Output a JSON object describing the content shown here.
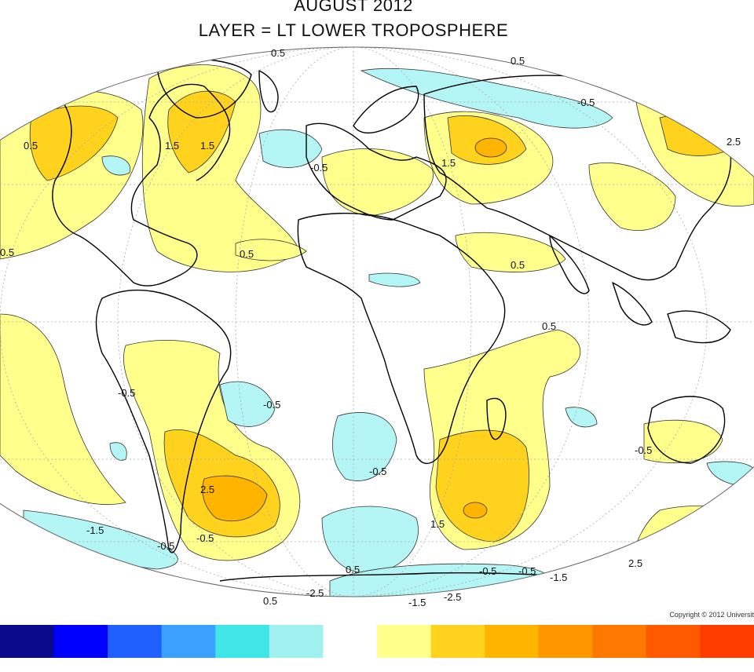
{
  "title": {
    "line1": "AUGUST 2012",
    "line2": "LAYER = LT LOWER TROPOSPHERE"
  },
  "copyright": "Copyright © 2012 Universit",
  "colors": {
    "positive_light": "#ffff8c",
    "positive_mid": "#ffd21e",
    "positive_strong": "#ffb400",
    "negative_light": "#b4f5f5",
    "ocean_bg": "#ffffff",
    "coast": "#000000"
  },
  "contour_labels": [
    "0.5",
    "0.5",
    "-0.5",
    "-0.5",
    "0.5",
    "1.5",
    "2.5",
    "1.5",
    "1.5",
    "0.5",
    "0.5",
    "0.5",
    "0.5",
    "-0.5",
    "-0.5",
    "-0.5",
    "-0.5",
    "2.5",
    "-1.5",
    "-0.5",
    "-0.5",
    "1.5",
    "0.5",
    "-0.5",
    "-2.5",
    "-1.5",
    "-2.5",
    "2.5",
    "-1.5",
    "-0.5",
    "0.5"
  ],
  "colorbar": {
    "swatches": [
      "#0a0a8c",
      "#0000ff",
      "#2060ff",
      "#3ca0ff",
      "#40e6e6",
      "#a0f0f0",
      "#ffffff",
      "#ffff8c",
      "#ffd21e",
      "#ffb400",
      "#ff9600",
      "#ff7800",
      "#ff5a00",
      "#ff3c00"
    ]
  }
}
